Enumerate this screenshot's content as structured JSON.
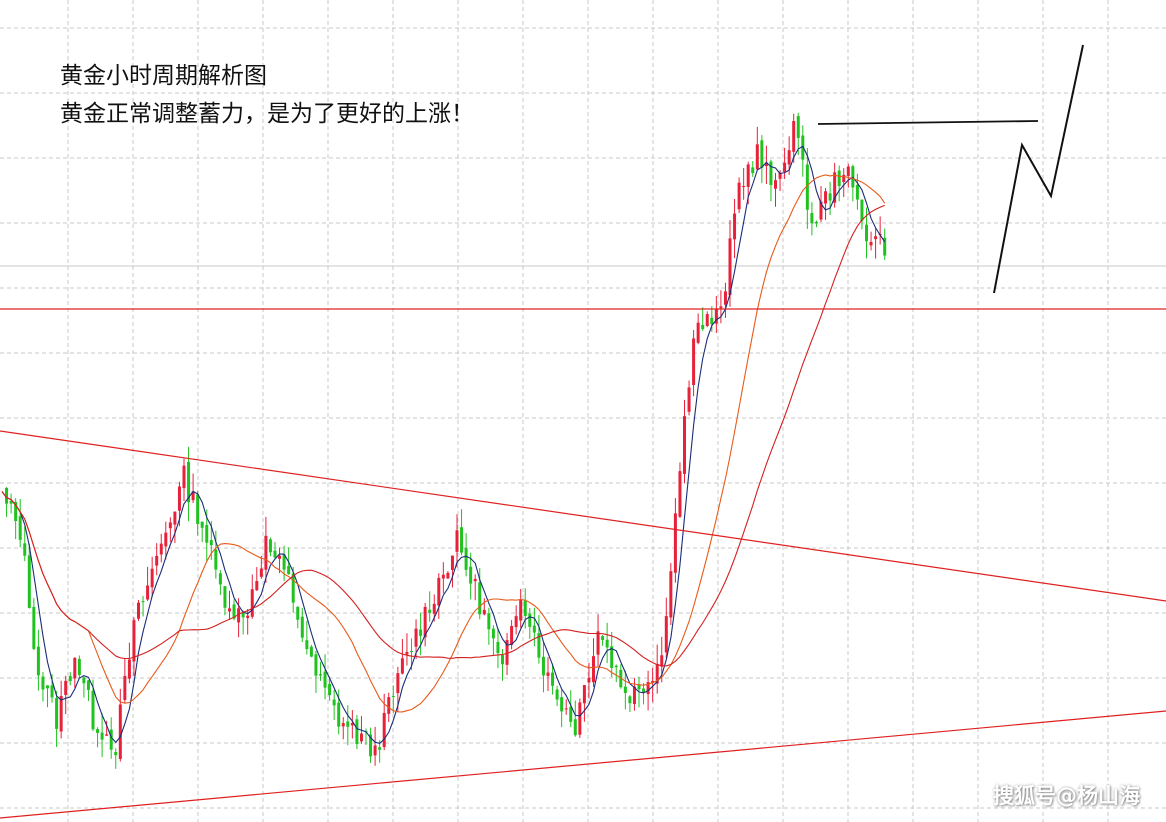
{
  "chart_data": {
    "type": "candlestick",
    "title_lines": [
      "黄金小时周期解析图",
      "黄金正常调整蓄力，是为了更好的上涨！"
    ],
    "watermark": "搜狐号@杨山海",
    "x_axis": {
      "unit": "hourly bars",
      "count": 218,
      "labels": "none printed"
    },
    "y_axis": {
      "labels": "none printed",
      "ylim": [
        0,
        100
      ]
    },
    "grid": true,
    "up_color": "#e8213a",
    "down_color": "#1fc21f",
    "moving_averages": [
      {
        "period": 5,
        "color": "#1a2d7a"
      },
      {
        "period": 20,
        "color": "#e85a1a"
      },
      {
        "period": 40,
        "color": "#d42020"
      }
    ],
    "keypoints": [
      [
        0,
        45
      ],
      [
        4,
        40
      ],
      [
        8,
        18
      ],
      [
        12,
        11
      ],
      [
        16,
        21
      ],
      [
        20,
        11
      ],
      [
        25,
        7
      ],
      [
        29,
        25
      ],
      [
        36,
        40
      ],
      [
        40,
        48
      ],
      [
        44,
        41
      ],
      [
        48,
        31
      ],
      [
        53,
        26
      ],
      [
        58,
        38
      ],
      [
        63,
        32
      ],
      [
        68,
        19
      ],
      [
        74,
        11
      ],
      [
        82,
        6
      ],
      [
        88,
        19
      ],
      [
        96,
        32
      ],
      [
        100,
        38
      ],
      [
        105,
        29
      ],
      [
        110,
        18
      ],
      [
        114,
        31
      ],
      [
        120,
        17
      ],
      [
        126,
        10
      ],
      [
        131,
        25
      ],
      [
        137,
        15
      ],
      [
        140,
        15
      ],
      [
        145,
        21
      ],
      [
        152,
        71
      ],
      [
        158,
        73
      ],
      [
        162,
        93
      ],
      [
        166,
        98
      ],
      [
        170,
        92
      ],
      [
        174,
        103
      ],
      [
        178,
        87
      ],
      [
        185,
        96
      ],
      [
        190,
        86
      ],
      [
        194,
        84
      ]
    ],
    "annotations": [
      {
        "type": "horizontal_support",
        "style": "red line"
      },
      {
        "type": "resistance_top",
        "style": "black line"
      },
      {
        "type": "descending_trendline",
        "style": "red line"
      },
      {
        "type": "ascending_trendline",
        "style": "red line"
      },
      {
        "type": "projected_path",
        "style": "black zigzag"
      }
    ]
  }
}
